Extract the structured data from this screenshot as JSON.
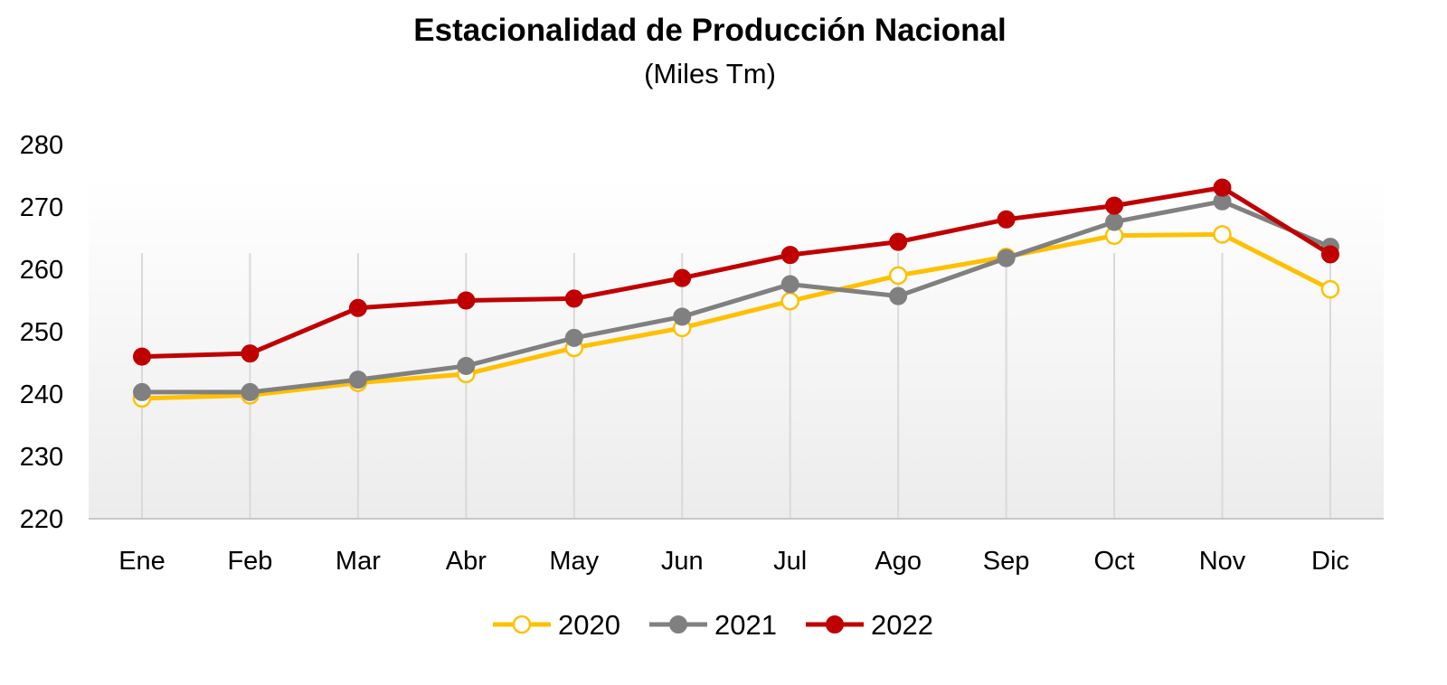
{
  "chart_data": {
    "type": "line",
    "title": "Estacionalidad de Producción Nacional",
    "subtitle": "(Miles Tm)",
    "xlabel": "",
    "ylabel": "",
    "categories": [
      "Ene",
      "Feb",
      "Mar",
      "Abr",
      "May",
      "Jun",
      "Jul",
      "Ago",
      "Sep",
      "Oct",
      "Nov",
      "Dic"
    ],
    "ylim": [
      220,
      280
    ],
    "yticks": [
      "220",
      "230",
      "240",
      "250",
      "260",
      "270",
      "280"
    ],
    "grid": "vertical lines at categories",
    "legend": "bottom-center",
    "series": [
      {
        "name": "2020",
        "color": "#FFC000",
        "marker": "hollow-circle",
        "values": [
          239.3,
          239.8,
          241.8,
          243.2,
          247.4,
          250.6,
          254.9,
          259.0,
          262.0,
          265.4,
          265.6,
          256.8
        ]
      },
      {
        "name": "2021",
        "color": "#808080",
        "marker": "filled-circle",
        "values": [
          240.3,
          240.3,
          242.3,
          244.5,
          249.0,
          252.4,
          257.6,
          255.7,
          261.8,
          267.6,
          270.9,
          263.6
        ]
      },
      {
        "name": "2022",
        "color": "#C00000",
        "marker": "filled-circle",
        "values": [
          246.0,
          246.5,
          253.8,
          255.0,
          255.3,
          258.6,
          262.3,
          264.4,
          268.0,
          270.2,
          273.1,
          262.4
        ]
      }
    ]
  }
}
